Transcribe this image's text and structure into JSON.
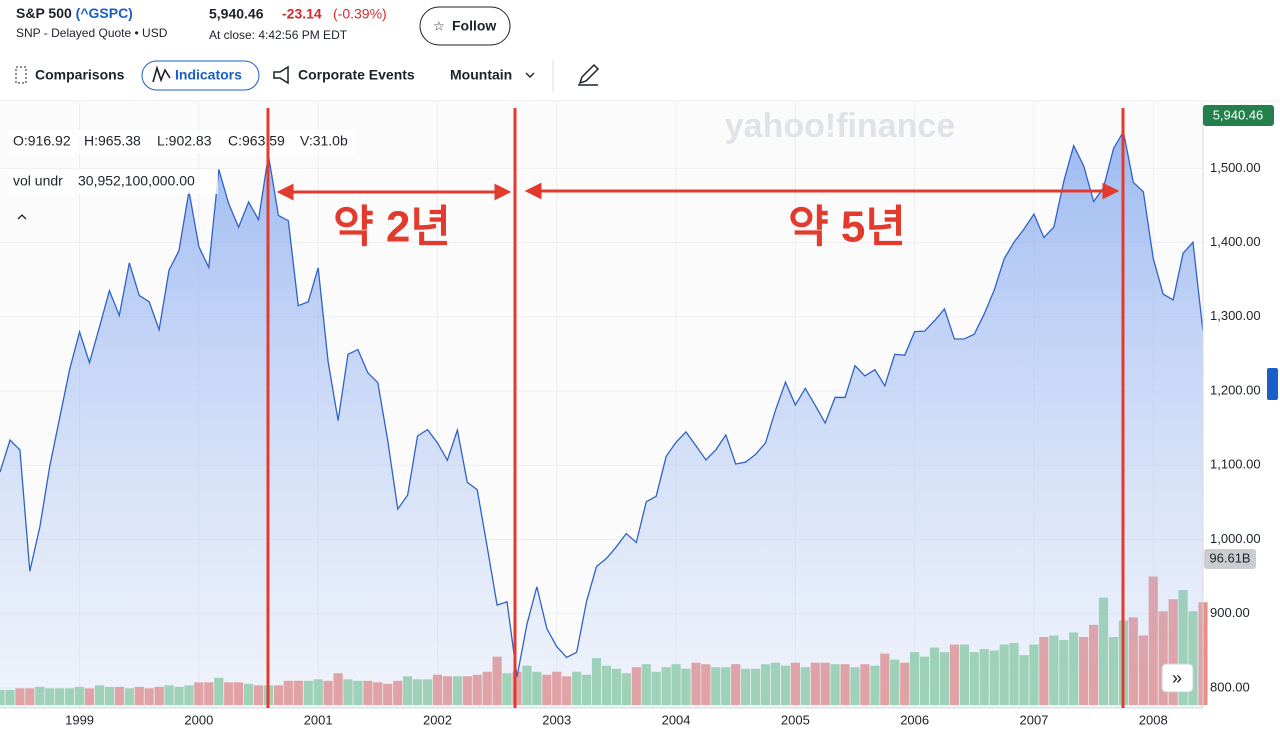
{
  "header": {
    "name": "S&P 500",
    "symbol": "(^GSPC)",
    "subtitle": "SNP - Delayed Quote • USD",
    "price": "5,940.46",
    "change": "-23.14",
    "change_pct": "(-0.39%)",
    "close_time": "At close: 4:42:56 PM EDT",
    "follow": "Follow"
  },
  "toolbar": {
    "comparisons": "Comparisons",
    "indicators": "Indicators",
    "events": "Corporate Events",
    "chart_type": "Mountain"
  },
  "readout": {
    "open": "O:916.92",
    "high": "H:965.38",
    "low": "L:902.83",
    "close": "C:963.59",
    "volume": "V:31.0b",
    "vol_name": "vol undr",
    "vol_value": "30,952,100,000.00"
  },
  "watermark": "yahoo!finance",
  "annotations": [
    "약 2년",
    "약 5년"
  ],
  "chart_data": {
    "type": "area",
    "color": "#2f63c6",
    "x": [
      1998.333,
      1998.417,
      1998.5,
      1998.583,
      1998.667,
      1998.75,
      1998.833,
      1998.917,
      1999.0,
      1999.083,
      1999.167,
      1999.25,
      1999.333,
      1999.417,
      1999.5,
      1999.583,
      1999.667,
      1999.75,
      1999.833,
      1999.917,
      2000.0,
      2000.083,
      2000.167,
      2000.25,
      2000.333,
      2000.417,
      2000.5,
      2000.583,
      2000.667,
      2000.75,
      2000.833,
      2000.917,
      2001.0,
      2001.083,
      2001.167,
      2001.25,
      2001.333,
      2001.417,
      2001.5,
      2001.583,
      2001.667,
      2001.75,
      2001.833,
      2001.917,
      2002.0,
      2002.083,
      2002.167,
      2002.25,
      2002.333,
      2002.417,
      2002.5,
      2002.583,
      2002.667,
      2002.75,
      2002.833,
      2002.917,
      2003.0,
      2003.083,
      2003.167,
      2003.25,
      2003.333,
      2003.417,
      2003.5,
      2003.583,
      2003.667,
      2003.75,
      2003.833,
      2003.917,
      2004.0,
      2004.083,
      2004.167,
      2004.25,
      2004.333,
      2004.417,
      2004.5,
      2004.583,
      2004.667,
      2004.75,
      2004.833,
      2004.917,
      2005.0,
      2005.083,
      2005.167,
      2005.25,
      2005.333,
      2005.417,
      2005.5,
      2005.583,
      2005.667,
      2005.75,
      2005.833,
      2005.917,
      2006.0,
      2006.083,
      2006.167,
      2006.25,
      2006.333,
      2006.417,
      2006.5,
      2006.583,
      2006.667,
      2006.75,
      2006.833,
      2006.917,
      2007.0,
      2007.083,
      2007.167,
      2007.25,
      2007.333,
      2007.417,
      2007.5,
      2007.583,
      2007.667,
      2007.75,
      2007.833,
      2007.917,
      2008.0,
      2008.083,
      2008.167,
      2008.25,
      2008.333,
      2008.417
    ],
    "values": [
      1090.82,
      1133.84,
      1120.67,
      957.28,
      1017.01,
      1098.67,
      1163.63,
      1229.23,
      1279.64,
      1238.33,
      1286.37,
      1335.18,
      1301.84,
      1372.71,
      1328.72,
      1320.41,
      1282.71,
      1362.93,
      1388.91,
      1469.25,
      1394.46,
      1366.42,
      1498.58,
      1452.43,
      1420.6,
      1454.6,
      1430.83,
      1517.68,
      1436.51,
      1429.4,
      1314.95,
      1320.28,
      1366.01,
      1239.94,
      1160.33,
      1249.46,
      1255.82,
      1224.38,
      1211.23,
      1133.58,
      1040.94,
      1059.78,
      1139.45,
      1148.08,
      1130.2,
      1106.73,
      1147.39,
      1076.92,
      1067.14,
      989.82,
      911.62,
      916.07,
      815.28,
      885.76,
      936.31,
      879.82,
      855.7,
      841.15,
      848.18,
      916.92,
      963.59,
      974.5,
      990.31,
      1008.01,
      995.97,
      1050.71,
      1058.2,
      1111.92,
      1131.13,
      1144.94,
      1126.21,
      1107.3,
      1120.68,
      1140.84,
      1101.72,
      1104.24,
      1114.58,
      1130.2,
      1173.82,
      1211.92,
      1181.27,
      1203.6,
      1180.59,
      1156.85,
      1191.5,
      1191.33,
      1234.18,
      1220.33,
      1228.81,
      1207.01,
      1249.48,
      1248.29,
      1280.08,
      1280.66,
      1294.83,
      1310.61,
      1270.09,
      1270.2,
      1276.66,
      1303.82,
      1335.85,
      1377.94,
      1400.63,
      1418.3,
      1438.24,
      1406.82,
      1420.86,
      1482.37,
      1530.62,
      1503.35,
      1455.27,
      1473.99,
      1526.75,
      1549.38,
      1481.14,
      1468.36,
      1378.55,
      1330.63,
      1322.7,
      1385.59,
      1400.38,
      1280.0
    ],
    "volume": {
      "up_color": "#8fcfa0",
      "down_color": "#e98f88",
      "label": {
        "value": 96.61,
        "label": "96.61B"
      },
      "values": [
        10,
        10,
        11,
        11,
        12,
        11,
        11,
        11,
        12,
        11,
        13,
        12,
        12,
        11,
        12,
        11,
        12,
        13,
        12,
        13,
        15,
        15,
        18,
        15,
        15,
        14,
        13,
        13,
        13,
        16,
        16,
        16,
        17,
        16,
        21,
        17,
        16,
        16,
        15,
        14,
        16,
        19,
        17,
        17,
        20,
        19,
        19,
        19,
        20,
        22,
        32,
        21,
        22,
        26,
        22,
        20,
        22,
        19,
        22,
        20,
        31,
        26,
        24,
        21,
        25,
        27,
        22,
        25,
        27,
        24,
        28,
        27,
        25,
        25,
        27,
        24,
        24,
        27,
        28,
        26,
        28,
        25,
        28,
        28,
        27,
        27,
        25,
        27,
        26,
        34,
        30,
        28,
        35,
        32,
        38,
        35,
        40,
        40,
        35,
        37,
        36,
        40,
        41,
        33,
        40,
        45,
        46,
        43,
        48,
        45,
        53,
        71,
        45,
        56,
        58,
        46,
        85,
        62,
        70,
        76,
        62,
        68
      ]
    },
    "price_tag": "5,940.46",
    "xlim": [
      1998.333,
      2008.417
    ],
    "xticks": [
      1999,
      2000,
      2001,
      2002,
      2003,
      2004,
      2005,
      2006,
      2007,
      2008
    ],
    "ylim": [
      773,
      1588
    ],
    "yticks": [
      {
        "value": 800,
        "label": "800.00"
      },
      {
        "value": 900,
        "label": "900.00"
      },
      {
        "value": 1000,
        "label": "1,000.00"
      },
      {
        "value": 1100,
        "label": "1,100.00"
      },
      {
        "value": 1200,
        "label": "1,200.00"
      },
      {
        "value": 1300,
        "label": "1,300.00"
      },
      {
        "value": 1400,
        "label": "1,400.00"
      },
      {
        "value": 1500,
        "label": "1,500.00"
      }
    ],
    "grid": true
  }
}
